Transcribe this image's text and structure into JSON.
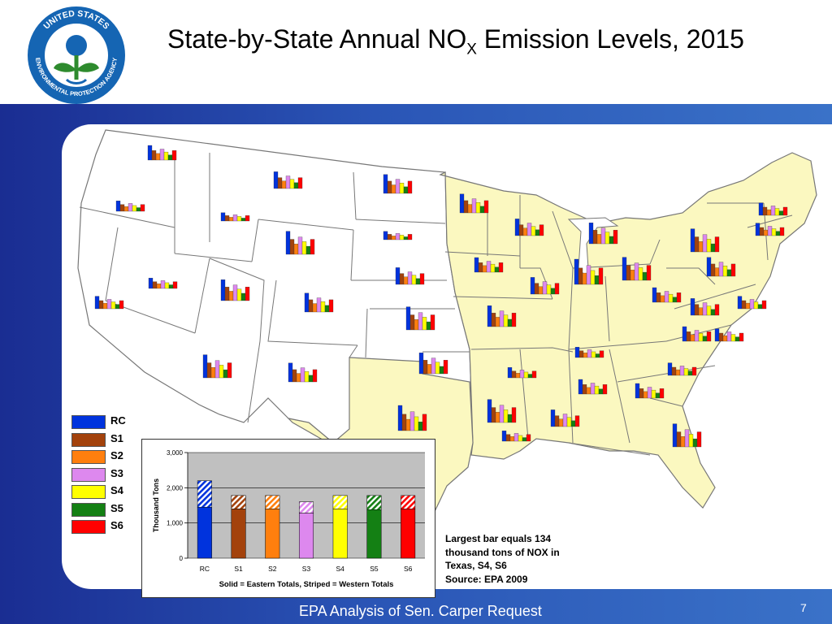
{
  "header": {
    "title_main": "State-by-State Annual NO",
    "title_sub": "X",
    "title_rest": " Emission Levels, 2015",
    "logo_text_top": "UNITED STATES",
    "logo_text_bottom": "ENVIRONMENTAL PROTECTION AGENCY"
  },
  "legend": {
    "items": [
      {
        "label": "RC",
        "color": "#0033dd"
      },
      {
        "label": "S1",
        "color": "#a3420c"
      },
      {
        "label": "S2",
        "color": "#ff7f0e"
      },
      {
        "label": "S3",
        "color": "#dd88ee"
      },
      {
        "label": "S4",
        "color": "#ffff00"
      },
      {
        "label": "S5",
        "color": "#148014"
      },
      {
        "label": "S6",
        "color": "#ff0000"
      }
    ]
  },
  "colors": {
    "eastern_states": "#fbf8c0",
    "western_states": "#ffffff",
    "state_border": "#777777",
    "band_dark": "#1a2d92",
    "band_light": "#3a72c8",
    "plot_bg": "#c0c0c0"
  },
  "chart_data": {
    "type": "bar",
    "categories": [
      "RC",
      "S1",
      "S2",
      "S3",
      "S4",
      "S5",
      "S6"
    ],
    "series": [
      {
        "name": "Solid = Eastern Totals",
        "values": [
          1450,
          1400,
          1400,
          1280,
          1400,
          1380,
          1400
        ]
      },
      {
        "name": "Striped = Western Totals",
        "values": [
          750,
          380,
          380,
          320,
          380,
          400,
          380
        ]
      }
    ],
    "stacked": true,
    "colors": [
      "#0033dd",
      "#a3420c",
      "#ff7f0e",
      "#dd88ee",
      "#ffff00",
      "#148014",
      "#ff0000"
    ],
    "ylabel": "Thousand Tons",
    "xlabel": "Solid = Eastern Totals, Striped = Western Totals",
    "ylim": [
      0,
      3000
    ],
    "yticks": [
      0,
      1000,
      2000,
      3000
    ],
    "ytick_labels": [
      "0",
      "1,000",
      "2,000",
      "3,000"
    ],
    "grid": true
  },
  "note": {
    "line1": "Largest bar equals 134",
    "line2": "thousand tons of NOX in",
    "line3": "Texas, S4, S6",
    "line4": "Source: EPA 2009"
  },
  "footer": {
    "text": "EPA Analysis of Sen. Carper Request",
    "page_number": "7"
  }
}
